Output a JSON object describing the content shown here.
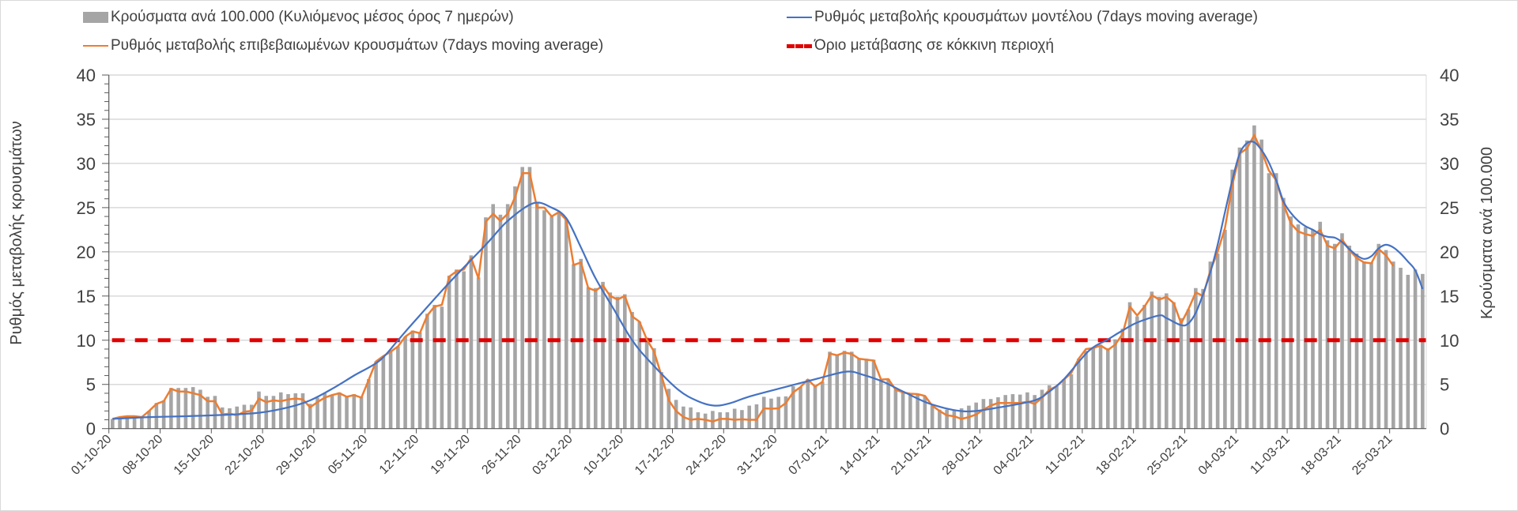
{
  "chart_data": {
    "type": "bar+line",
    "x_start_date": "01-10-20",
    "x_tick_labels": [
      "01-10-20",
      "08-10-20",
      "15-10-20",
      "22-10-20",
      "29-10-20",
      "05-11-20",
      "12-11-20",
      "19-11-20",
      "26-11-20",
      "03-12-20",
      "10-12-20",
      "17-12-20",
      "24-12-20",
      "31-12-20",
      "07-01-21",
      "14-01-21",
      "21-01-21",
      "28-01-21",
      "04-02-21",
      "11-02-21",
      "18-02-21",
      "25-02-21",
      "04-03-21",
      "11-03-21",
      "18-03-21",
      "25-03-21"
    ],
    "left_axis": {
      "label": "Ρυθμός μεταβολής κρουσμάτων",
      "ylim": [
        0,
        40
      ],
      "ticks": [
        "0",
        "5",
        "10",
        "15",
        "20",
        "25",
        "30",
        "35",
        "40"
      ]
    },
    "right_axis": {
      "label": "Κρούσματα ανά 100.000",
      "ylim": [
        0,
        40
      ],
      "ticks": [
        "0",
        "5",
        "10",
        "15",
        "20",
        "25",
        "30",
        "35",
        "40"
      ]
    },
    "grid": true,
    "legend_position": "top",
    "series": [
      {
        "name": "Κρούσματα ανά 100.000 (Κυλιόμενος μέσος όρος 7 ημερών)",
        "type": "bar",
        "axis": "right",
        "color": "#a5a5a5",
        "values": [
          1.1,
          1.3,
          1.4,
          1.4,
          1.4,
          2.0,
          2.9,
          3.2,
          4.6,
          4.6,
          4.6,
          4.7,
          4.4,
          3.6,
          3.7,
          2.4,
          2.3,
          2.5,
          2.7,
          2.7,
          4.2,
          3.7,
          3.7,
          4.1,
          3.9,
          4.0,
          4.0,
          2.8,
          3.5,
          4.0,
          3.8,
          4.1,
          3.6,
          3.9,
          3.6,
          5.6,
          7.6,
          8.2,
          8.8,
          9.3,
          10.4,
          11.1,
          10.9,
          13.0,
          14.0,
          13.8,
          17.3,
          18.0,
          17.8,
          19.6,
          17.1,
          23.9,
          25.4,
          24.2,
          25.4,
          27.4,
          29.6,
          29.6,
          25.5,
          24.7,
          24.0,
          24.5,
          23.7,
          18.6,
          19.2,
          16.0,
          15.9,
          16.6,
          15.4,
          14.9,
          15.2,
          13.2,
          12.1,
          10.3,
          9.1,
          6.4,
          4.5,
          3.25,
          2.5,
          2.4,
          1.85,
          1.7,
          2.0,
          1.85,
          1.85,
          2.25,
          2.1,
          2.6,
          2.75,
          3.6,
          3.4,
          3.6,
          3.65,
          4.8,
          4.7,
          5.6,
          4.9,
          5.3,
          8.7,
          8.4,
          8.8,
          8.7,
          7.9,
          7.9,
          7.8,
          5.6,
          5.6,
          4.4,
          4.1,
          3.85,
          3.85,
          3.65,
          2.6,
          2.15,
          2.15,
          2.15,
          2.3,
          2.6,
          2.95,
          3.35,
          3.35,
          3.55,
          3.8,
          3.9,
          3.85,
          4.1,
          3.8,
          4.4,
          4.9,
          4.8,
          5.6,
          6.15,
          7.9,
          8.8,
          9.2,
          9.5,
          9.1,
          10.1,
          11.3,
          14.3,
          12.7,
          14.0,
          15.5,
          14.9,
          15.3,
          14.3,
          12.5,
          13.5,
          15.9,
          15.8,
          18.9,
          19.8,
          22.5,
          29.3,
          31.8,
          32.6,
          34.3,
          32.7,
          28.9,
          28.9,
          26.1,
          24.0,
          23.1,
          22.8,
          22.5,
          23.4,
          21.3,
          20.9,
          22.1,
          20.7,
          19.8,
          18.9,
          18.8,
          20.9,
          20.2,
          18.9,
          18.2,
          17.4,
          18.0,
          17.5
        ]
      },
      {
        "name": "Ρυθμός μεταβολής κρουσμάτων μοντέλου (7days moving average)",
        "type": "line",
        "axis": "left",
        "color": "#4472c4",
        "points_day_value": [
          [
            0,
            1.1
          ],
          [
            5,
            1.3
          ],
          [
            10,
            1.4
          ],
          [
            15,
            1.55
          ],
          [
            20,
            1.8
          ],
          [
            24,
            2.4
          ],
          [
            27,
            3.2
          ],
          [
            30,
            4.5
          ],
          [
            33,
            6.0
          ],
          [
            36.5,
            7.7
          ],
          [
            39,
            10.0
          ],
          [
            41,
            11.9
          ],
          [
            46,
            16.5
          ],
          [
            51,
            20.8
          ],
          [
            54,
            23.5
          ],
          [
            57.5,
            25.5
          ],
          [
            60,
            25.0
          ],
          [
            62,
            23.8
          ],
          [
            64,
            20.5
          ],
          [
            66,
            17.0
          ],
          [
            68.5,
            13.5
          ],
          [
            71,
            10.0
          ],
          [
            73.4,
            7.6
          ],
          [
            77.3,
            4.4
          ],
          [
            80,
            3.1
          ],
          [
            82.3,
            2.6
          ],
          [
            84.5,
            2.9
          ],
          [
            86.9,
            3.6
          ],
          [
            91.9,
            4.7
          ],
          [
            96.5,
            5.7
          ],
          [
            100.3,
            6.45
          ],
          [
            102.5,
            6.1
          ],
          [
            105.3,
            5.3
          ],
          [
            108.5,
            4.0
          ],
          [
            111.9,
            2.75
          ],
          [
            116.5,
            1.95
          ],
          [
            121.5,
            2.45
          ],
          [
            126,
            3.2
          ],
          [
            128,
            4.2
          ],
          [
            130,
            5.6
          ],
          [
            133.4,
            8.8
          ],
          [
            136,
            10.1
          ],
          [
            138,
            11.1
          ],
          [
            140,
            12.0
          ],
          [
            143,
            12.8
          ],
          [
            144,
            12.5
          ],
          [
            146,
            11.7
          ],
          [
            147,
            11.9
          ],
          [
            148,
            13.1
          ],
          [
            149,
            15.2
          ],
          [
            150,
            17.7
          ],
          [
            151,
            20.8
          ],
          [
            152,
            24.5
          ],
          [
            153,
            28.1
          ],
          [
            154,
            31.1
          ],
          [
            155,
            32.3
          ],
          [
            156,
            32.4
          ],
          [
            157,
            31.5
          ],
          [
            158,
            30.1
          ],
          [
            159,
            28.1
          ],
          [
            160,
            25.7
          ],
          [
            161,
            24.4
          ],
          [
            162,
            23.5
          ],
          [
            163,
            22.9
          ],
          [
            164,
            22.5
          ],
          [
            165,
            22.0
          ],
          [
            166,
            21.7
          ],
          [
            167,
            21.6
          ],
          [
            168,
            21.1
          ],
          [
            169,
            20.3
          ],
          [
            170,
            19.6
          ],
          [
            171,
            19.2
          ],
          [
            172,
            19.5
          ],
          [
            173,
            20.4
          ],
          [
            174,
            20.8
          ],
          [
            175,
            20.5
          ],
          [
            176,
            19.8
          ],
          [
            177,
            18.9
          ],
          [
            178,
            17.9
          ],
          [
            179,
            15.8
          ]
        ]
      },
      {
        "name": "Ρυθμός μεταβολής επιβεβαιωμένων κρουσμάτων (7days moving average)",
        "type": "line",
        "axis": "left",
        "color": "#ed7d31",
        "values": [
          1.1,
          1.3,
          1.4,
          1.4,
          1.3,
          2.0,
          2.8,
          3.1,
          4.5,
          4.2,
          4.2,
          4.0,
          3.8,
          3.1,
          3.1,
          1.6,
          1.7,
          1.5,
          1.9,
          2.0,
          3.4,
          3.0,
          3.2,
          3.1,
          3.3,
          3.4,
          3.3,
          2.4,
          3.0,
          3.5,
          3.8,
          4.0,
          3.6,
          3.8,
          3.5,
          5.5,
          7.6,
          8.2,
          8.7,
          9.3,
          10.4,
          11.0,
          10.8,
          12.8,
          13.8,
          14.0,
          17.2,
          17.8,
          18.0,
          19.3,
          17.0,
          23.4,
          24.3,
          23.5,
          24.3,
          26.2,
          28.9,
          28.9,
          25.0,
          25.0,
          24.0,
          24.5,
          23.6,
          18.5,
          18.8,
          15.9,
          15.6,
          16.2,
          15.0,
          14.6,
          15.0,
          12.7,
          12.1,
          10.1,
          8.7,
          6.0,
          3.2,
          2.0,
          1.3,
          1.0,
          1.1,
          1.0,
          0.8,
          1.1,
          1.1,
          1.0,
          1.05,
          1.0,
          1.0,
          2.3,
          2.25,
          2.3,
          2.9,
          4.1,
          4.7,
          5.55,
          4.75,
          5.3,
          8.5,
          8.3,
          8.6,
          8.45,
          7.9,
          7.8,
          7.7,
          5.55,
          5.6,
          4.4,
          4.1,
          3.95,
          3.9,
          3.7,
          2.6,
          2.0,
          1.5,
          1.4,
          1.1,
          1.3,
          1.6,
          2.15,
          2.6,
          2.9,
          2.9,
          2.9,
          2.9,
          3.05,
          2.8,
          3.5,
          4.4,
          4.8,
          5.55,
          6.3,
          7.9,
          9.0,
          9.1,
          9.4,
          8.9,
          9.5,
          10.7,
          13.8,
          12.8,
          13.8,
          15.1,
          14.6,
          14.9,
          14.2,
          11.9,
          13.5,
          15.4,
          15.0,
          17.9,
          20.0,
          22.7,
          27.5,
          31.1,
          31.7,
          33.2,
          31.4,
          29.2,
          28.1,
          25.4,
          23.2,
          22.3,
          22.0,
          21.8,
          22.5,
          20.7,
          20.4,
          21.4,
          20.2,
          19.3,
          18.8,
          18.7,
          20.3,
          19.6,
          18.4
        ]
      },
      {
        "name": "Όριο μετάβασης σε κόκκινη περιοχή",
        "type": "hline",
        "axis": "left",
        "color": "#e00000",
        "value": 10
      }
    ]
  }
}
